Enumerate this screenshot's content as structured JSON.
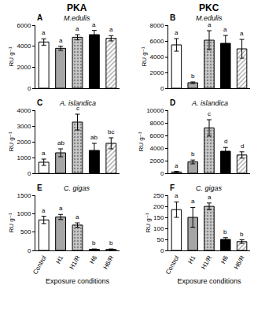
{
  "column_titles": [
    "PKA",
    "PKC"
  ],
  "chart_data": [
    {
      "type": "bar",
      "panel": "A",
      "title": "M.edulis",
      "y_label": "RU g⁻¹",
      "categories": [
        "Control",
        "H1",
        "H1/R",
        "H6",
        "H6/R"
      ],
      "values": [
        4400,
        3800,
        4850,
        5100,
        4750
      ],
      "errors": [
        300,
        200,
        250,
        400,
        250
      ],
      "letters": [
        "a",
        "a",
        "a",
        "a",
        "a"
      ],
      "colors": [
        "#ffffff",
        "#a6a6a6",
        "#c8c8c8",
        "#000000",
        "#ffffff"
      ],
      "ylim": [
        0,
        6000
      ],
      "yticks": [
        0,
        2000,
        4000,
        6000
      ],
      "tick_labels": "y"
    },
    {
      "type": "bar",
      "panel": "B",
      "title": "M.edulis",
      "y_label": "RU g⁻¹",
      "categories": [
        "Control",
        "H1",
        "H1/R",
        "H6",
        "H6/R"
      ],
      "values": [
        5500,
        700,
        6100,
        5700,
        5000
      ],
      "errors": [
        800,
        100,
        1200,
        1000,
        1200
      ],
      "letters": [
        "a",
        "b",
        "a",
        "a",
        "a"
      ],
      "colors": [
        "#ffffff",
        "#a6a6a6",
        "#c8c8c8",
        "#000000",
        "#ffffff"
      ],
      "ylim": [
        0,
        8000
      ],
      "yticks": [
        0,
        2000,
        4000,
        6000,
        8000
      ],
      "tick_labels": "y"
    },
    {
      "type": "bar",
      "panel": "C",
      "title": "A. islandica",
      "y_label": "RU g⁻¹",
      "categories": [
        "Control",
        "H1",
        "H1/R",
        "H6",
        "H6/R"
      ],
      "values": [
        700,
        1300,
        3250,
        1450,
        1900
      ],
      "errors": [
        200,
        250,
        500,
        450,
        350
      ],
      "letters": [
        "a",
        "ab",
        "c",
        "ab",
        "bc"
      ],
      "colors": [
        "#ffffff",
        "#a6a6a6",
        "#c8c8c8",
        "#000000",
        "#ffffff"
      ],
      "ylim": [
        0,
        4000
      ],
      "yticks": [
        0,
        1000,
        2000,
        3000,
        4000
      ],
      "tick_labels": "y"
    },
    {
      "type": "bar",
      "panel": "D",
      "title": "A. islandica",
      "y_label": "RU g⁻¹",
      "categories": [
        "Control",
        "H1",
        "H1/R",
        "H6",
        "H6/R"
      ],
      "values": [
        200,
        1800,
        7200,
        3500,
        2900
      ],
      "errors": [
        100,
        300,
        1300,
        600,
        500
      ],
      "letters": [
        "a",
        "b",
        "c",
        "d",
        "d"
      ],
      "colors": [
        "#ffffff",
        "#a6a6a6",
        "#c8c8c8",
        "#000000",
        "#ffffff"
      ],
      "ylim": [
        0,
        10000
      ],
      "yticks": [
        0,
        2000,
        4000,
        6000,
        8000,
        10000
      ],
      "tick_labels": "y"
    },
    {
      "type": "bar",
      "panel": "E",
      "title": "C. gigas",
      "y_label": "RU g⁻¹",
      "x_label": "Exposure conditions",
      "categories": [
        "Control",
        "H1",
        "H1/R",
        "H6",
        "H6/R"
      ],
      "values": [
        830,
        910,
        690,
        30,
        30
      ],
      "errors": [
        100,
        70,
        60,
        10,
        10
      ],
      "letters": [
        "a",
        "a",
        "a",
        "b",
        "b"
      ],
      "colors": [
        "#ffffff",
        "#a6a6a6",
        "#c8c8c8",
        "#000000",
        "#ffffff"
      ],
      "ylim": [
        0,
        1500
      ],
      "yticks": [
        0,
        500,
        1000,
        1500
      ]
    },
    {
      "type": "bar",
      "panel": "F",
      "title": "C. gigas",
      "y_label": "RU g⁻¹",
      "x_label": "Exposure conditions",
      "categories": [
        "Control",
        "H1",
        "H1/R",
        "H6",
        "H6/R"
      ],
      "values": [
        185,
        150,
        200,
        50,
        40
      ],
      "errors": [
        35,
        45,
        15,
        8,
        8
      ],
      "letters": [
        "a",
        "a",
        "a",
        "b",
        "b"
      ],
      "colors": [
        "#ffffff",
        "#a6a6a6",
        "#c8c8c8",
        "#000000",
        "#ffffff"
      ],
      "ylim": [
        0,
        250
      ],
      "yticks": [
        0,
        50,
        100,
        150,
        200,
        250
      ]
    }
  ]
}
